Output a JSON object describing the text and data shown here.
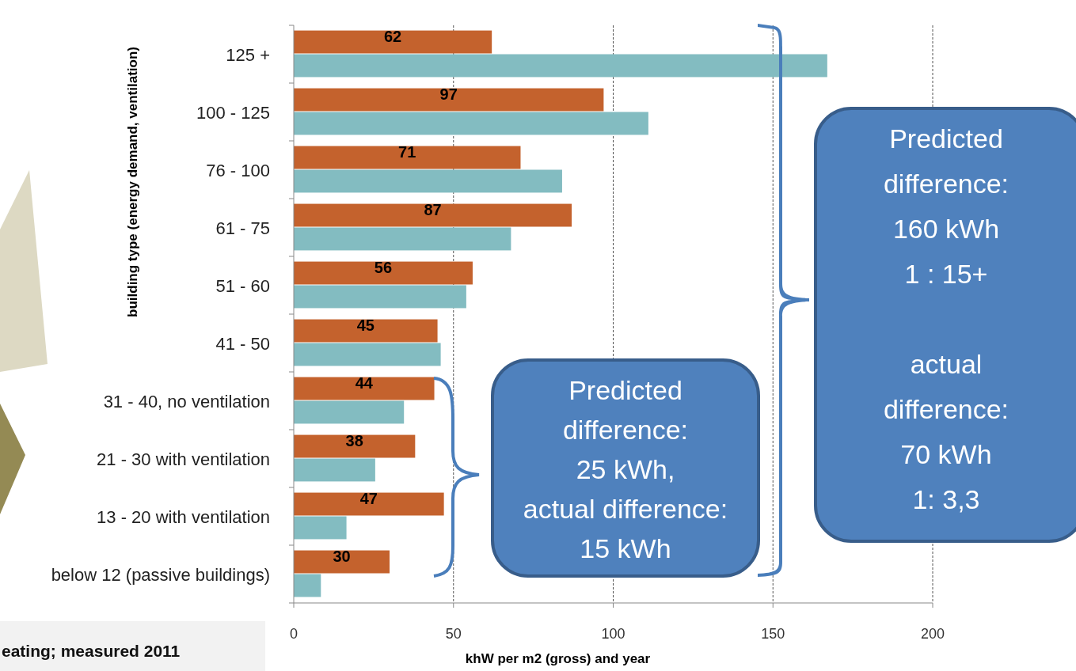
{
  "chart_data": {
    "type": "bar",
    "orientation": "horizontal",
    "categories": [
      "125 +",
      "100 - 125",
      "76 - 100",
      "61 - 75",
      "51 - 60",
      "41 - 50",
      "31 - 40, no ventilation",
      "21 - 30 with ventilation",
      "13 - 20 with ventilation",
      "below 12 (passive buildings)"
    ],
    "series": [
      {
        "color": "#c4622d",
        "values": [
          62,
          97,
          71,
          87,
          56,
          45,
          44,
          38,
          47,
          30
        ],
        "value_labels": [
          "62",
          "97",
          "71",
          "87",
          "56",
          "45",
          "44",
          "38",
          "47",
          "30"
        ]
      },
      {
        "color": "#83bcc1",
        "values": [
          167,
          111,
          84,
          68,
          54,
          46,
          34.5,
          25.5,
          16.5,
          8.5
        ]
      }
    ],
    "xlabel": "khW per m2 (gross) and year",
    "ylabel": "building type (energy demand, ventilation)",
    "xlim": [
      0,
      200
    ],
    "xticks": [
      0,
      50,
      100,
      150,
      200
    ],
    "grid": "x",
    "annotations": [
      "eating; measured 2011",
      "Predicted\ndifference:\n25 kWh,\nactual difference:\n15 kWh",
      "Predicted\ndifference:\n160 kWh\n1 : 15+\n\nactual\ndifference:\n70 kWh\n1: 3,3"
    ]
  }
}
